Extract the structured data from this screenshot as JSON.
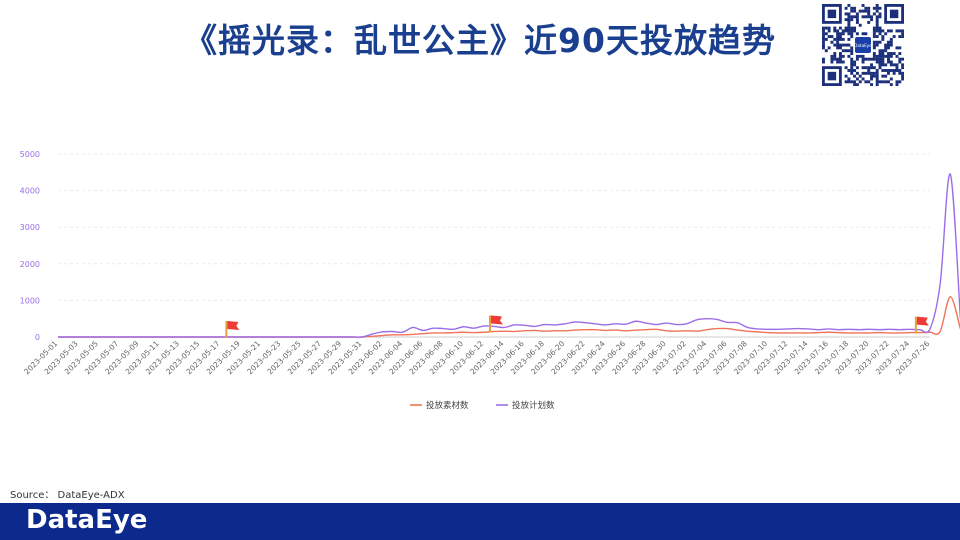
{
  "header": {
    "title": "《摇光录：乱世公主》近90天投放趋势"
  },
  "source": {
    "text": "Source： DataEye-ADX"
  },
  "footer": {
    "logo_text": "DataEye",
    "bg_color": "#0b2a8c"
  },
  "qr": {
    "center_text": "DataEye"
  },
  "chart_data": {
    "type": "line",
    "ylim": [
      0,
      5000
    ],
    "yticks": [
      0,
      1000,
      2000,
      3000,
      4000,
      5000
    ],
    "x_tick_labels": [
      "2023-05-01",
      "2023-05-03",
      "2023-05-05",
      "2023-05-07",
      "2023-05-09",
      "2023-05-11",
      "2023-05-13",
      "2023-05-15",
      "2023-05-17",
      "2023-05-19",
      "2023-05-21",
      "2023-05-23",
      "2023-05-25",
      "2023-05-27",
      "2023-05-29",
      "2023-05-31",
      "2023-06-02",
      "2023-06-04",
      "2023-06-06",
      "2023-06-08",
      "2023-06-10",
      "2023-06-12",
      "2023-06-14",
      "2023-06-16",
      "2023-06-18",
      "2023-06-20",
      "2023-06-22",
      "2023-06-24",
      "2023-06-26",
      "2023-06-28",
      "2023-06-30",
      "2023-07-02",
      "2023-07-04",
      "2023-07-06",
      "2023-07-08",
      "2023-07-10",
      "2023-07-12",
      "2023-07-14",
      "2023-07-16",
      "2023-07-18",
      "2023-07-20",
      "2023-07-22",
      "2023-07-24",
      "2023-07-26"
    ],
    "grid": true,
    "legend_position": "bottom-center",
    "flags": [
      "2023-05-18",
      "2023-06-13",
      "2023-07-25"
    ],
    "series": [
      {
        "name": "投放素材数",
        "color": "#f0735a",
        "values": [
          0,
          0,
          0,
          0,
          0,
          0,
          0,
          0,
          0,
          0,
          0,
          0,
          0,
          0,
          0,
          0,
          0,
          0,
          0,
          0,
          0,
          0,
          0,
          0,
          0,
          0,
          0,
          0,
          0,
          0,
          0,
          20,
          40,
          60,
          60,
          70,
          90,
          110,
          110,
          120,
          130,
          120,
          130,
          150,
          160,
          150,
          170,
          180,
          160,
          170,
          170,
          190,
          200,
          200,
          180,
          190,
          170,
          190,
          200,
          210,
          170,
          160,
          170,
          160,
          200,
          230,
          230,
          190,
          160,
          140,
          120,
          110,
          110,
          110,
          110,
          120,
          130,
          120,
          110,
          110,
          110,
          120,
          110,
          110,
          120,
          120,
          130,
          150,
          1100,
          220
        ]
      },
      {
        "name": "投放计划数",
        "color": "#9b6ee8",
        "values": [
          0,
          0,
          0,
          0,
          0,
          0,
          0,
          0,
          0,
          0,
          0,
          0,
          0,
          0,
          0,
          0,
          0,
          0,
          0,
          0,
          0,
          0,
          0,
          0,
          0,
          0,
          0,
          0,
          0,
          0,
          0,
          80,
          140,
          150,
          130,
          260,
          180,
          240,
          230,
          210,
          280,
          240,
          300,
          290,
          260,
          330,
          320,
          290,
          340,
          330,
          360,
          410,
          390,
          360,
          330,
          360,
          350,
          430,
          380,
          340,
          380,
          340,
          360,
          470,
          500,
          480,
          400,
          390,
          260,
          220,
          210,
          210,
          220,
          230,
          220,
          200,
          220,
          200,
          210,
          200,
          210,
          200,
          210,
          200,
          210,
          200,
          220,
          1450,
          4450,
          500
        ]
      }
    ]
  }
}
